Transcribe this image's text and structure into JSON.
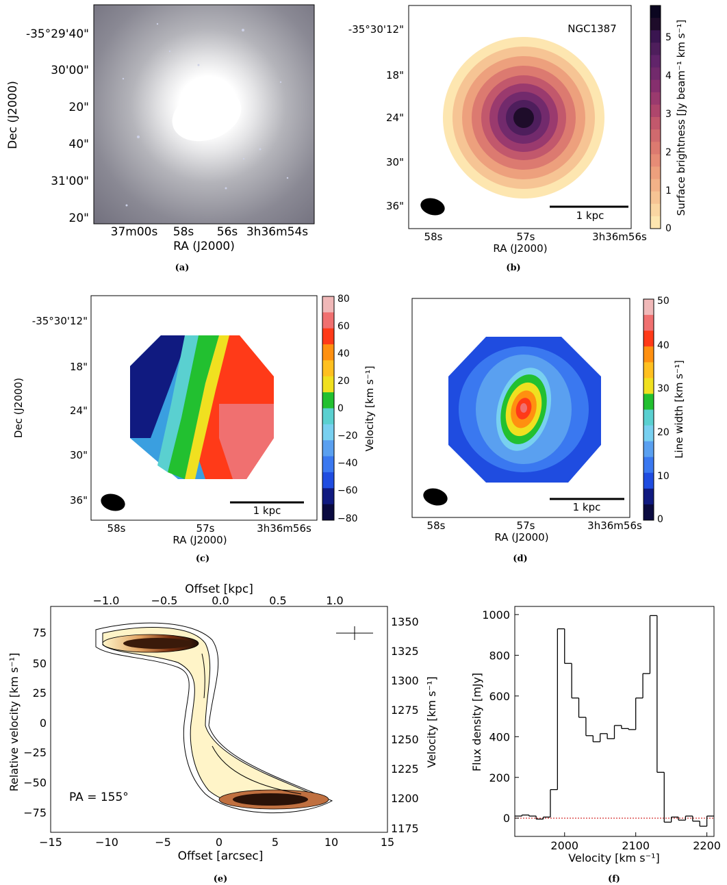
{
  "panel_a": {
    "caption": "(a)",
    "xlabel": "RA (J2000)",
    "ylabel": "Dec (J2000)",
    "xticks": [
      "37m00s",
      "58s",
      "56s",
      "3h36m54s"
    ],
    "yticks": [
      "-35°29'40\"",
      "30'00\"",
      "20\"",
      "40\"",
      "31'00\"",
      "20\""
    ]
  },
  "panel_b": {
    "caption": "(b)",
    "object": "NGC1387",
    "xlabel": "RA (J2000)",
    "xticks": [
      "58s",
      "57s",
      "3h36m56s"
    ],
    "yticks": [
      "-35°30'12\"",
      "18\"",
      "24\"",
      "30\"",
      "36\""
    ],
    "scalebar": "1 kpc",
    "cbar_label": "Surface brightness [Jy beam⁻¹ km s⁻¹]",
    "cbar_ticks": [
      "0",
      "1",
      "2",
      "3",
      "4",
      "5"
    ]
  },
  "panel_c": {
    "caption": "(c)",
    "xlabel": "RA (J2000)",
    "ylabel": "Dec (J2000)",
    "xticks": [
      "58s",
      "57s",
      "3h36m56s"
    ],
    "yticks": [
      "-35°30'12\"",
      "18\"",
      "24\"",
      "30\"",
      "36\""
    ],
    "scalebar": "1 kpc",
    "cbar_label": "Velocity [km s⁻¹]",
    "cbar_ticks": [
      "80",
      "60",
      "40",
      "20",
      "0",
      "−20",
      "−40",
      "−60",
      "−80"
    ]
  },
  "panel_d": {
    "caption": "(d)",
    "xlabel": "RA (J2000)",
    "xticks": [
      "58s",
      "57s",
      "3h36m56s"
    ],
    "scalebar": "1 kpc",
    "cbar_label": "Line width [km s⁻¹]",
    "cbar_ticks": [
      "50",
      "40",
      "30",
      "20",
      "10",
      "0"
    ]
  },
  "panel_e": {
    "caption": "(e)",
    "annotation": "PA = 155°",
    "xlabel": "Offset [arcsec]",
    "ylabel": "Relative velocity [km s⁻¹]",
    "top_label": "Offset [kpc]",
    "right_label": "Velocity [km s⁻¹]",
    "xticks": [
      "−15",
      "−10",
      "−5",
      "0",
      "5",
      "10",
      "15"
    ],
    "yticks": [
      "75",
      "50",
      "25",
      "0",
      "−25",
      "−50",
      "−75"
    ],
    "top_ticks": [
      "−1.0",
      "−0.5",
      "0.0",
      "0.5",
      "1.0"
    ],
    "right_ticks": [
      "1350",
      "1325",
      "1300",
      "1275",
      "1250",
      "1225",
      "1200",
      "1175"
    ]
  },
  "colors": {
    "step_line": "#000000",
    "zero_line": "#cc0000"
  },
  "chart_data": {
    "type": "line",
    "caption": "(f)",
    "xlabel": "Velocity [km s⁻¹]",
    "ylabel": "Flux density [mJy]",
    "xlim": [
      1930,
      2210
    ],
    "ylim": [
      -90,
      1040
    ],
    "xticks": [
      "2000",
      "2100",
      "2200"
    ],
    "yticks": [
      "0",
      "200",
      "400",
      "600",
      "800",
      "1000"
    ],
    "x": [
      1930,
      1940,
      1950,
      1960,
      1970,
      1980,
      1990,
      2000,
      2010,
      2020,
      2030,
      2040,
      2050,
      2060,
      2070,
      2080,
      2090,
      2100,
      2110,
      2120,
      2130,
      2140,
      2150,
      2160,
      2170,
      2180,
      2190,
      2200
    ],
    "values": [
      10,
      15,
      10,
      -5,
      5,
      140,
      930,
      760,
      590,
      495,
      405,
      375,
      415,
      390,
      455,
      440,
      435,
      590,
      710,
      995,
      225,
      -20,
      5,
      -10,
      10,
      -15,
      -40,
      10
    ]
  }
}
